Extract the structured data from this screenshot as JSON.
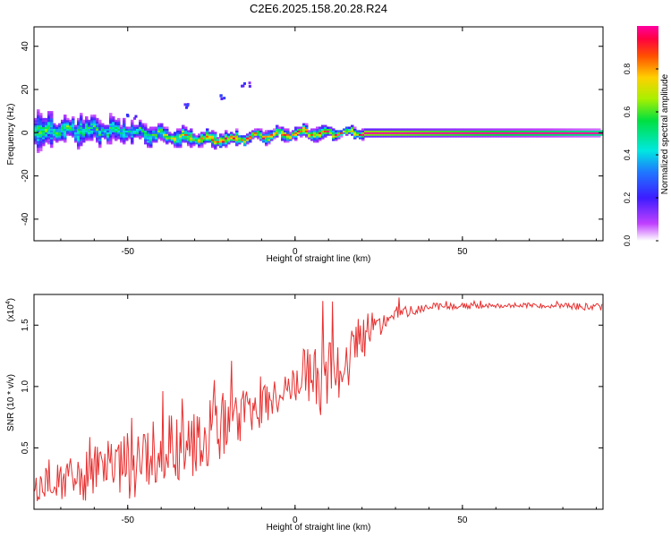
{
  "title": "C2E6.2025.158.20.28.R24",
  "chart_data": [
    {
      "type": "heatmap",
      "panel": "spectrogram",
      "xlabel": "Height of straight line (km)",
      "ylabel": "Frequency (Hz)",
      "xlim": [
        -78,
        92
      ],
      "ylim": [
        -50,
        49
      ],
      "x_ticks": [
        -50,
        0,
        50
      ],
      "x_tick_labels": [
        "-50",
        "0",
        "50"
      ],
      "y_ticks": [
        -40,
        -20,
        0,
        20,
        40
      ],
      "y_tick_labels": [
        "-40",
        "-20",
        "0",
        "20",
        "40"
      ],
      "trace": [
        {
          "x": -78,
          "freq": 0.5,
          "spread": 6,
          "peak": 0.55
        },
        {
          "x": -70,
          "freq": 1.0,
          "spread": 5,
          "peak": 0.6
        },
        {
          "x": -60,
          "freq": 1.5,
          "spread": 5,
          "peak": 0.55
        },
        {
          "x": -50,
          "freq": 0.5,
          "spread": 4,
          "peak": 0.5
        },
        {
          "x": -42,
          "freq": -0.5,
          "spread": 3,
          "peak": 0.6
        },
        {
          "x": -35,
          "freq": -2.0,
          "spread": 3,
          "peak": 0.75
        },
        {
          "x": -28,
          "freq": -3.0,
          "spread": 2.5,
          "peak": 0.85
        },
        {
          "x": -20,
          "freq": -3.0,
          "spread": 2.5,
          "peak": 0.9
        },
        {
          "x": -10,
          "freq": -1.5,
          "spread": 2,
          "peak": 0.85
        },
        {
          "x": 0,
          "freq": 0.0,
          "spread": 2,
          "peak": 0.9
        },
        {
          "x": 10,
          "freq": 0.0,
          "spread": 2,
          "peak": 0.9
        },
        {
          "x": 20,
          "freq": 0.0,
          "spread": 1.5,
          "peak": 1.0
        },
        {
          "x": 92,
          "freq": 0.0,
          "spread": 1.2,
          "peak": 1.0
        }
      ],
      "outliers": [
        {
          "x": -49,
          "freq": 8
        },
        {
          "x": -32,
          "freq": 13
        },
        {
          "x": -23,
          "freq": 17
        },
        {
          "x": -15,
          "freq": 23
        }
      ],
      "colorbar": {
        "label": "Normalized spectral amplitude",
        "range": [
          0,
          1
        ],
        "ticks": [
          0.0,
          0.2,
          0.4,
          0.6,
          0.8
        ],
        "tick_labels": [
          "0.0",
          "0.2",
          "0.4",
          "0.6",
          "0.8"
        ]
      }
    },
    {
      "type": "line",
      "panel": "snr",
      "xlabel": "Height of straight line (km)",
      "ylabel": "SNR (10 * v/v)",
      "y_scale_label": "(x10",
      "y_scale_exponent": "4",
      "y_scale_suffix": ")",
      "xlim": [
        -78,
        92
      ],
      "ylim": [
        0,
        1.75
      ],
      "x_ticks": [
        -50,
        0,
        50
      ],
      "x_tick_labels": [
        "-50",
        "0",
        "50"
      ],
      "y_ticks": [
        0.5,
        1.0,
        1.5
      ],
      "y_tick_labels": [
        "0.5",
        "1.0",
        "1.5"
      ],
      "line_color": "#e83030",
      "series": [
        {
          "name": "SNR",
          "envelope": [
            {
              "x": -78,
              "mean": 0.18,
              "noise": 0.12
            },
            {
              "x": -65,
              "mean": 0.25,
              "noise": 0.2
            },
            {
              "x": -55,
              "mean": 0.32,
              "noise": 0.25
            },
            {
              "x": -45,
              "mean": 0.4,
              "noise": 0.3
            },
            {
              "x": -38,
              "mean": 0.55,
              "noise": 0.35
            },
            {
              "x": -30,
              "mean": 0.6,
              "noise": 0.35
            },
            {
              "x": -25,
              "mean": 0.65,
              "noise": 0.3
            },
            {
              "x": -15,
              "mean": 0.78,
              "noise": 0.2
            },
            {
              "x": -5,
              "mean": 0.92,
              "noise": 0.15
            },
            {
              "x": 2,
              "mean": 1.1,
              "noise": 0.2
            },
            {
              "x": 8,
              "mean": 1.05,
              "noise": 0.3
            },
            {
              "x": 15,
              "mean": 1.2,
              "noise": 0.25
            },
            {
              "x": 22,
              "mean": 1.45,
              "noise": 0.15
            },
            {
              "x": 30,
              "mean": 1.6,
              "noise": 0.06
            },
            {
              "x": 40,
              "mean": 1.65,
              "noise": 0.03
            },
            {
              "x": 60,
              "mean": 1.66,
              "noise": 0.02
            },
            {
              "x": 80,
              "mean": 1.66,
              "noise": 0.02
            },
            {
              "x": 92,
              "mean": 1.64,
              "noise": 0.04
            }
          ]
        }
      ]
    }
  ]
}
